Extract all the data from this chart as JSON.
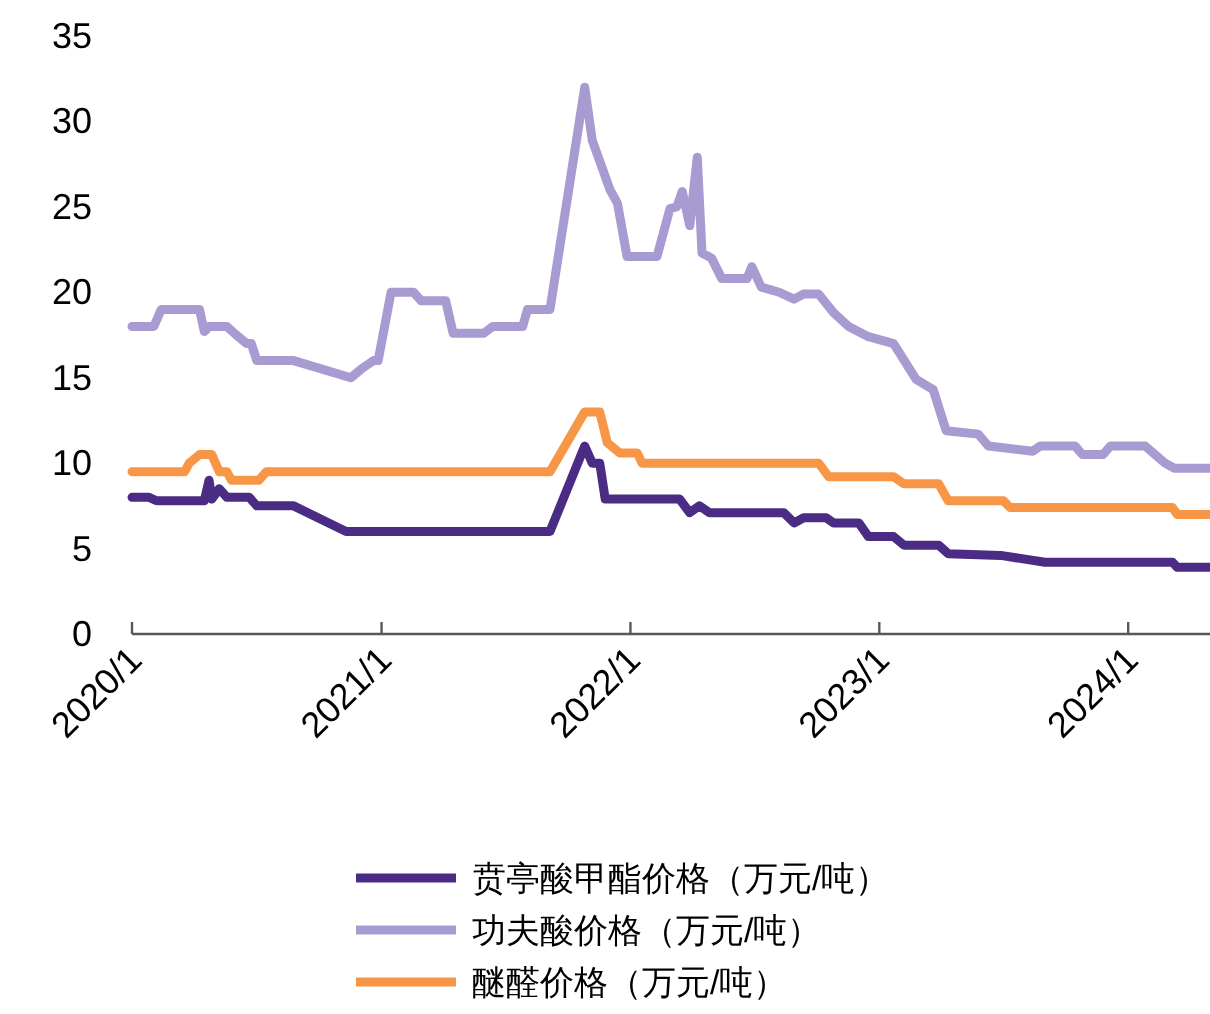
{
  "chart_data": {
    "type": "line",
    "xlim": [
      "2020-01-01",
      "2024-04-30"
    ],
    "xticks": [
      {
        "value": "2020-01",
        "label": "2020/1"
      },
      {
        "value": "2021-01",
        "label": "2021/1"
      },
      {
        "value": "2022-01",
        "label": "2022/1"
      },
      {
        "value": "2023-01",
        "label": "2023/1"
      },
      {
        "value": "2024-01",
        "label": "2024/1"
      }
    ],
    "ylim": [
      0,
      35
    ],
    "yticks": [
      0,
      5,
      10,
      15,
      20,
      25,
      30,
      35
    ],
    "grid": false,
    "legend": "bottom",
    "marker": "none",
    "line_style": "solid",
    "series": [
      {
        "name": "贲亭酸甲酯价格（万元/吨）",
        "color": "#4b2c84",
        "x": [
          "2020-01-01",
          "2020-01-26",
          "2020-02-06",
          "2020-04-16",
          "2020-04-23",
          "2020-04-27",
          "2020-05-08",
          "2020-05-19",
          "2020-06-21",
          "2020-07-02",
          "2020-08-25",
          "2020-11-10",
          "2021-09-05",
          "2021-10-26",
          "2021-11-06",
          "2021-11-17",
          "2021-11-25",
          "2022-03-14",
          "2022-03-29",
          "2022-04-12",
          "2022-04-27",
          "2022-08-14",
          "2022-08-29",
          "2022-09-12",
          "2022-10-15",
          "2022-10-26",
          "2022-12-02",
          "2022-12-16",
          "2023-01-22",
          "2023-02-06",
          "2023-03-29",
          "2023-04-12",
          "2023-06-28",
          "2023-09-01",
          "2024-03-06",
          "2024-03-13",
          "2024-04-30"
        ],
        "values": [
          8.0,
          8.0,
          7.8,
          7.8,
          9.0,
          7.9,
          8.5,
          8.0,
          8.0,
          7.5,
          7.5,
          6.0,
          6.0,
          11.0,
          10.0,
          10.0,
          7.9,
          7.9,
          7.1,
          7.5,
          7.1,
          7.1,
          6.5,
          6.8,
          6.8,
          6.5,
          6.5,
          5.7,
          5.7,
          5.2,
          5.2,
          4.7,
          4.6,
          4.2,
          4.2,
          3.9,
          3.9
        ]
      },
      {
        "name": "功夫酸价格（万元/吨）",
        "color": "#a89bd1",
        "x": [
          "2020-01-01",
          "2020-02-02",
          "2020-02-13",
          "2020-04-09",
          "2020-04-16",
          "2020-04-23",
          "2020-05-19",
          "2020-06-02",
          "2020-06-17",
          "2020-06-24",
          "2020-07-02",
          "2020-08-25",
          "2020-11-17",
          "2020-12-02",
          "2020-12-20",
          "2020-12-27",
          "2021-01-15",
          "2021-02-17",
          "2021-02-28",
          "2021-04-05",
          "2021-04-16",
          "2021-05-31",
          "2021-06-13",
          "2021-07-27",
          "2021-08-03",
          "2021-09-05",
          "2021-10-26",
          "2021-11-06",
          "2021-12-02",
          "2021-12-13",
          "2021-12-27",
          "2022-02-09",
          "2022-02-28",
          "2022-03-10",
          "2022-03-18",
          "2022-03-29",
          "2022-04-09",
          "2022-04-16",
          "2022-04-30",
          "2022-05-15",
          "2022-06-21",
          "2022-06-28",
          "2022-07-12",
          "2022-08-07",
          "2022-08-29",
          "2022-09-12",
          "2022-10-04",
          "2022-10-26",
          "2022-11-17",
          "2022-12-16",
          "2023-01-22",
          "2023-02-24",
          "2023-03-21",
          "2023-04-09",
          "2023-05-26",
          "2023-06-10",
          "2023-08-14",
          "2023-08-25",
          "2023-10-15",
          "2023-10-26",
          "2023-11-25",
          "2023-12-06",
          "2024-01-26",
          "2024-02-24",
          "2024-03-09",
          "2024-04-30"
        ],
        "values": [
          18,
          18,
          19,
          19,
          17.7,
          18,
          18,
          17.5,
          17,
          17,
          16,
          16,
          15,
          15.5,
          16,
          16,
          20,
          20,
          19.5,
          19.5,
          17.6,
          17.6,
          18,
          18,
          19,
          19,
          32,
          28.9,
          26,
          25.2,
          22.1,
          22.1,
          24.9,
          25,
          25.9,
          23.9,
          27.9,
          22.3,
          22,
          20.8,
          20.8,
          21.5,
          20.3,
          20,
          19.6,
          19.9,
          19.9,
          18.8,
          18,
          17.4,
          17,
          14.9,
          14.3,
          11.9,
          11.7,
          11,
          10.7,
          11,
          11,
          10.5,
          10.5,
          11,
          11,
          10,
          9.7,
          9.7
        ]
      },
      {
        "name": "醚醛价格（万元/吨）",
        "color": "#f79646",
        "x": [
          "2020-01-01",
          "2020-03-18",
          "2020-03-25",
          "2020-04-09",
          "2020-04-27",
          "2020-05-08",
          "2020-05-19",
          "2020-05-26",
          "2020-07-05",
          "2020-07-16",
          "2021-09-05",
          "2021-10-26",
          "2021-11-17",
          "2021-11-28",
          "2021-12-16",
          "2022-01-11",
          "2022-01-18",
          "2022-10-04",
          "2022-10-19",
          "2023-01-22",
          "2023-02-06",
          "2023-03-29",
          "2023-04-12",
          "2023-07-02",
          "2023-07-12",
          "2024-03-06",
          "2024-03-13",
          "2024-04-30"
        ],
        "values": [
          9.5,
          9.5,
          10.0,
          10.5,
          10.5,
          9.5,
          9.5,
          9.0,
          9.0,
          9.5,
          9.5,
          13,
          13,
          11.2,
          10.6,
          10.6,
          10.0,
          10.0,
          9.2,
          9.2,
          8.8,
          8.8,
          7.8,
          7.8,
          7.4,
          7.4,
          7.0,
          7.0
        ]
      }
    ]
  }
}
